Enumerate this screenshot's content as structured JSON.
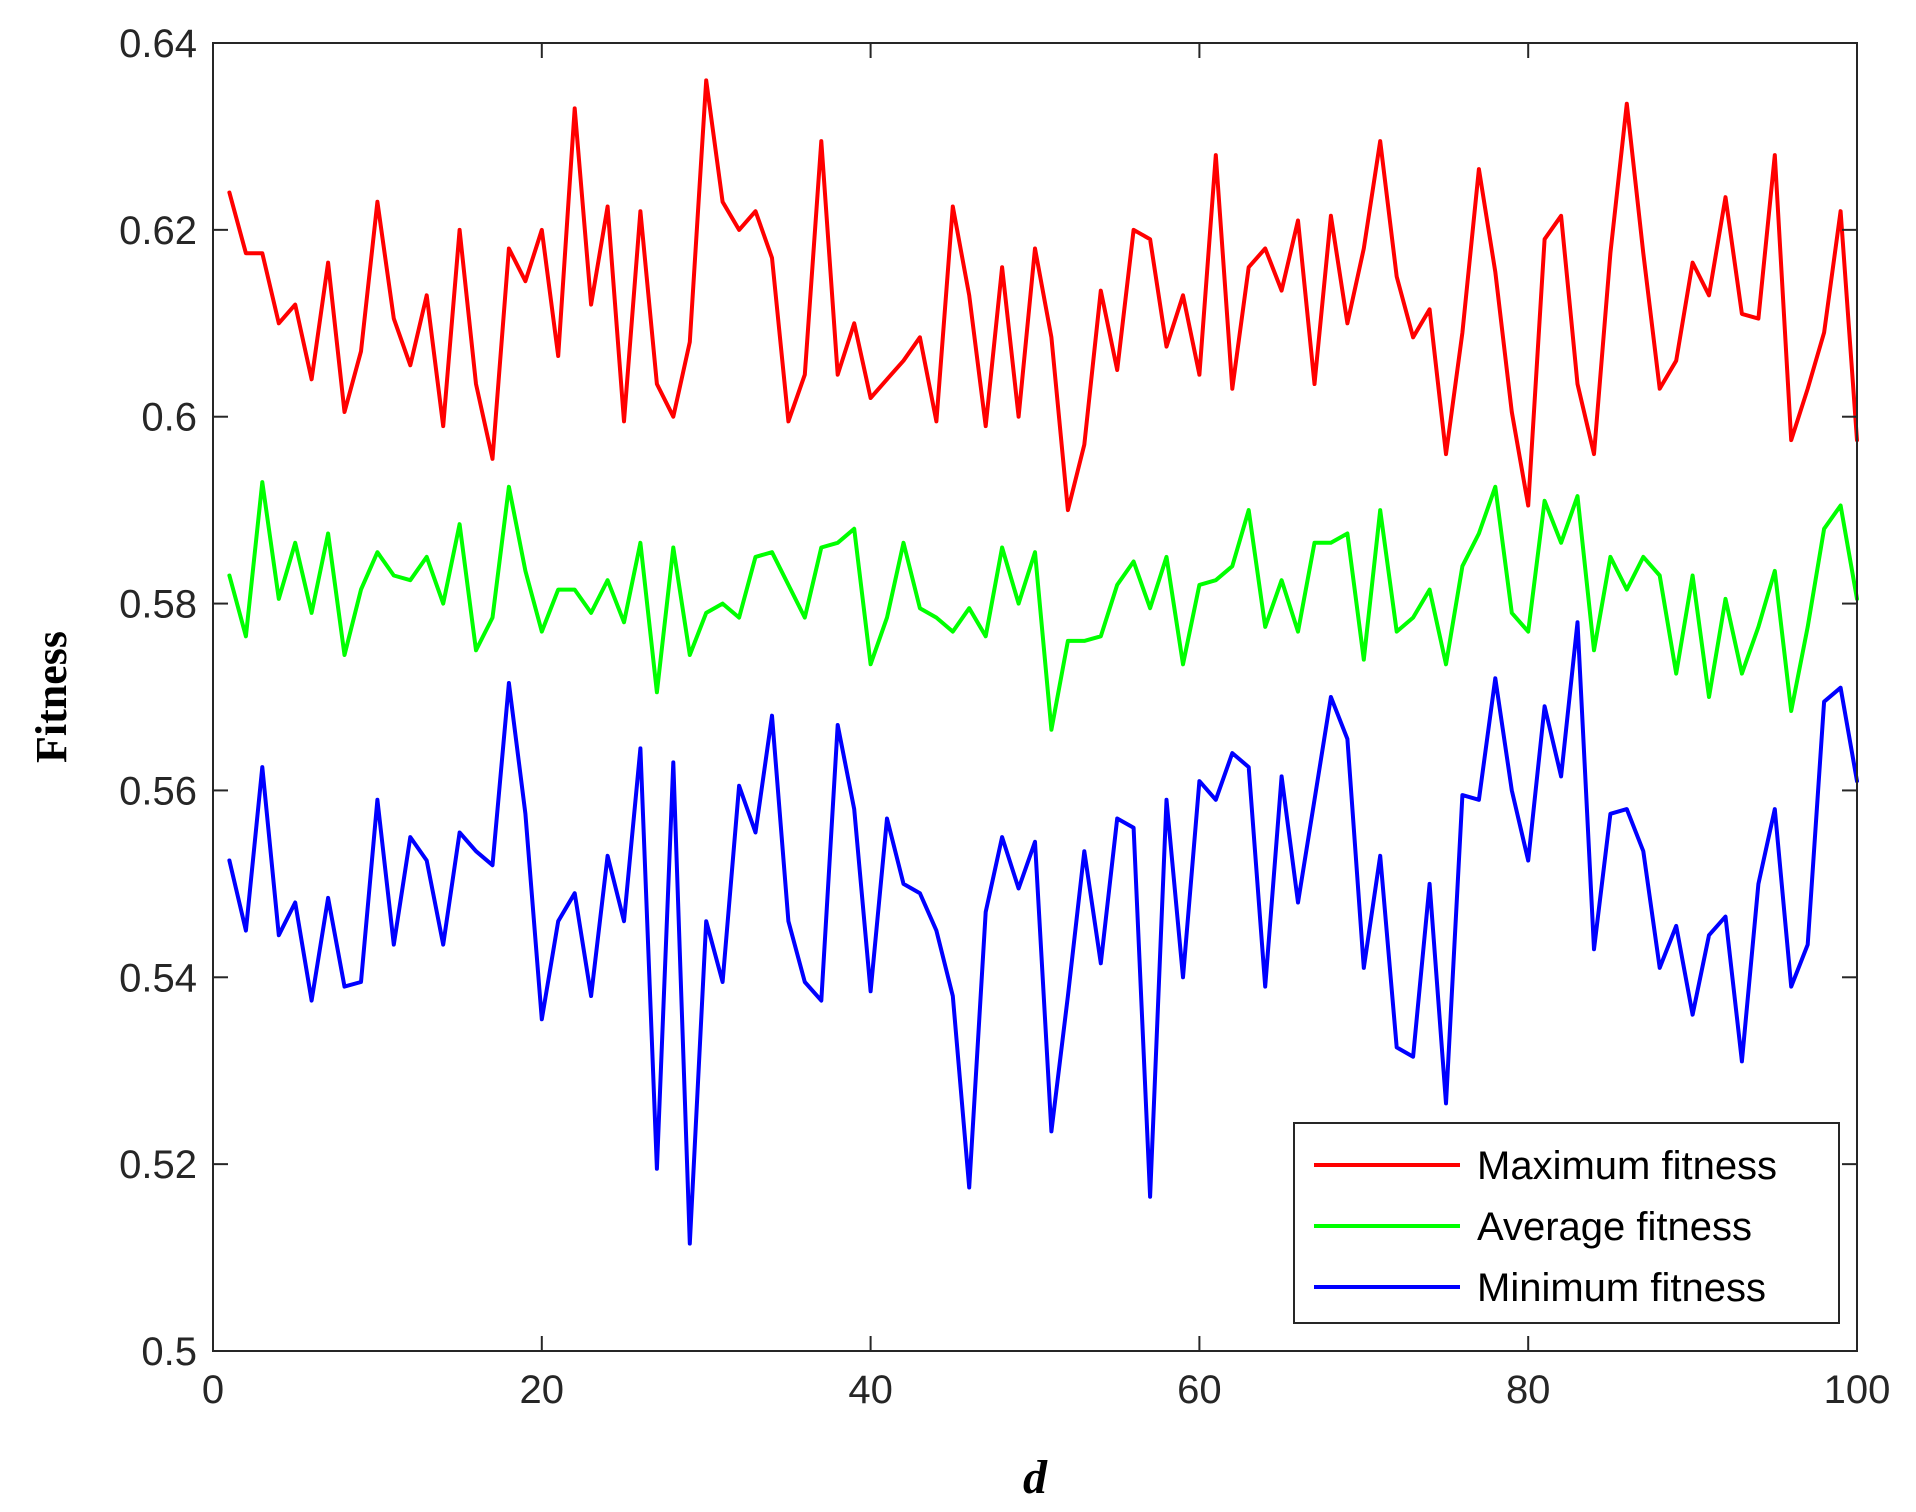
{
  "chart_data": {
    "type": "line",
    "xlabel": "d",
    "ylabel": "Fitness",
    "xlim": [
      0,
      100
    ],
    "ylim": [
      0.5,
      0.64
    ],
    "xticks": [
      0,
      20,
      40,
      60,
      80,
      100
    ],
    "yticks": [
      0.5,
      0.52,
      0.54,
      0.56,
      0.58,
      0.6,
      0.62,
      0.64
    ],
    "xtick_labels": [
      "0",
      "20",
      "40",
      "60",
      "80",
      "100"
    ],
    "ytick_labels": [
      "0.5",
      "0.52",
      "0.54",
      "0.56",
      "0.58",
      "0.6",
      "0.62",
      "0.64"
    ],
    "legend_position": "bottom-right",
    "grid": false,
    "x": [
      1,
      2,
      3,
      4,
      5,
      6,
      7,
      8,
      9,
      10,
      11,
      12,
      13,
      14,
      15,
      16,
      17,
      18,
      19,
      20,
      21,
      22,
      23,
      24,
      25,
      26,
      27,
      28,
      29,
      30,
      31,
      32,
      33,
      34,
      35,
      36,
      37,
      38,
      39,
      40,
      41,
      42,
      43,
      44,
      45,
      46,
      47,
      48,
      49,
      50,
      51,
      52,
      53,
      54,
      55,
      56,
      57,
      58,
      59,
      60,
      61,
      62,
      63,
      64,
      65,
      66,
      67,
      68,
      69,
      70,
      71,
      72,
      73,
      74,
      75,
      76,
      77,
      78,
      79,
      80,
      81,
      82,
      83,
      84,
      85,
      86,
      87,
      88,
      89,
      90,
      91,
      92,
      93,
      94,
      95,
      96,
      97,
      98,
      99,
      100
    ],
    "series": [
      {
        "name": "Maximum fitness",
        "color": "#ff0000",
        "values": [
          0.624,
          0.6175,
          0.6175,
          0.61,
          0.612,
          0.604,
          0.6165,
          0.6005,
          0.607,
          0.623,
          0.6105,
          0.6055,
          0.613,
          0.599,
          0.62,
          0.6035,
          0.5955,
          0.618,
          0.6145,
          0.62,
          0.6065,
          0.633,
          0.612,
          0.6225,
          0.5995,
          0.622,
          0.6035,
          0.6,
          0.608,
          0.636,
          0.623,
          0.62,
          0.622,
          0.617,
          0.5995,
          0.6045,
          0.6295,
          0.6045,
          0.61,
          0.602,
          0.604,
          0.606,
          0.6085,
          0.5995,
          0.6225,
          0.613,
          0.599,
          0.616,
          0.6,
          0.618,
          0.6085,
          0.59,
          0.597,
          0.6135,
          0.605,
          0.62,
          0.619,
          0.6075,
          0.613,
          0.6045,
          0.628,
          0.603,
          0.616,
          0.618,
          0.6135,
          0.621,
          0.6035,
          0.6215,
          0.61,
          0.618,
          0.6295,
          0.615,
          0.6085,
          0.6115,
          0.596,
          0.609,
          0.6265,
          0.6155,
          0.6005,
          0.5905,
          0.619,
          0.6215,
          0.6035,
          0.596,
          0.6175,
          0.6335,
          0.6175,
          0.603,
          0.606,
          0.6165,
          0.613,
          0.6235,
          0.611,
          0.6105,
          0.628,
          0.5975,
          0.603,
          0.609,
          0.622,
          0.5975
        ]
      },
      {
        "name": "Average fitness",
        "color": "#00ff00",
        "values": [
          0.583,
          0.5765,
          0.593,
          0.5805,
          0.5865,
          0.579,
          0.5875,
          0.5745,
          0.5815,
          0.5855,
          0.583,
          0.5825,
          0.585,
          0.58,
          0.5885,
          0.575,
          0.5785,
          0.5925,
          0.5835,
          0.577,
          0.5815,
          0.5815,
          0.579,
          0.5825,
          0.578,
          0.5865,
          0.5705,
          0.586,
          0.5745,
          0.579,
          0.58,
          0.5785,
          0.585,
          0.5855,
          0.582,
          0.5785,
          0.586,
          0.5865,
          0.588,
          0.5735,
          0.5785,
          0.5865,
          0.5795,
          0.5785,
          0.577,
          0.5795,
          0.5765,
          0.586,
          0.58,
          0.5855,
          0.5665,
          0.576,
          0.576,
          0.5765,
          0.582,
          0.5845,
          0.5795,
          0.585,
          0.5735,
          0.582,
          0.5825,
          0.584,
          0.59,
          0.5775,
          0.5825,
          0.577,
          0.5865,
          0.5865,
          0.5875,
          0.574,
          0.59,
          0.577,
          0.5785,
          0.5815,
          0.5735,
          0.584,
          0.5875,
          0.5925,
          0.579,
          0.577,
          0.591,
          0.5865,
          0.5915,
          0.575,
          0.585,
          0.5815,
          0.585,
          0.583,
          0.5725,
          0.583,
          0.57,
          0.5805,
          0.5725,
          0.5775,
          0.5835,
          0.5685,
          0.5775,
          0.588,
          0.5905,
          0.5805
        ]
      },
      {
        "name": "Minimum fitness",
        "color": "#0000ff",
        "values": [
          0.5525,
          0.545,
          0.5625,
          0.5445,
          0.548,
          0.5375,
          0.5485,
          0.539,
          0.5395,
          0.559,
          0.5435,
          0.555,
          0.5525,
          0.5435,
          0.5555,
          0.5535,
          0.552,
          0.5715,
          0.5575,
          0.5355,
          0.546,
          0.549,
          0.538,
          0.553,
          0.546,
          0.5645,
          0.5195,
          0.563,
          0.5115,
          0.546,
          0.5395,
          0.5605,
          0.5555,
          0.568,
          0.546,
          0.5395,
          0.5375,
          0.567,
          0.558,
          0.5385,
          0.557,
          0.55,
          0.549,
          0.545,
          0.538,
          0.5175,
          0.547,
          0.555,
          0.5495,
          0.5545,
          0.5235,
          0.538,
          0.5535,
          0.5415,
          0.557,
          0.556,
          0.5165,
          0.559,
          0.54,
          0.561,
          0.559,
          0.564,
          0.5625,
          0.539,
          0.5615,
          0.548,
          0.559,
          0.57,
          0.5655,
          0.541,
          0.553,
          0.5325,
          0.5315,
          0.55,
          0.5265,
          0.5595,
          0.559,
          0.572,
          0.56,
          0.5525,
          0.569,
          0.5615,
          0.578,
          0.543,
          0.5575,
          0.558,
          0.5535,
          0.541,
          0.5455,
          0.536,
          0.5445,
          0.5465,
          0.531,
          0.55,
          0.558,
          0.539,
          0.5435,
          0.5695,
          0.571,
          0.561
        ]
      }
    ]
  }
}
